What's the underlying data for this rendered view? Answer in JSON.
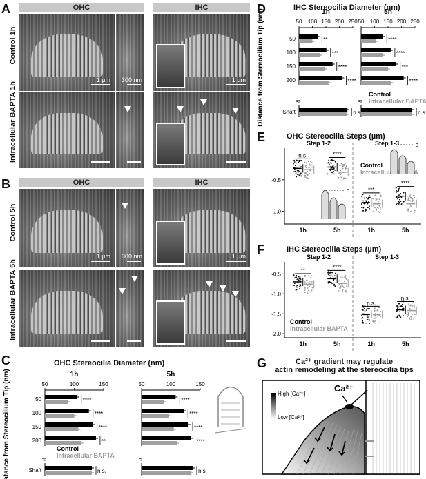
{
  "panels": {
    "A": {
      "letter": "A",
      "col_headers": [
        "OHC",
        "IHC"
      ],
      "row_labels": [
        "Control 1h",
        "Intracellular BAPTA 1h"
      ],
      "scale_1um": "1 µm",
      "scale_300nm": "300 nm"
    },
    "B": {
      "letter": "B",
      "col_headers": [
        "OHC",
        "IHC"
      ],
      "row_labels": [
        "Control 5h",
        "Intracellular BAPTA 5h"
      ],
      "scale_1um": "1 µm",
      "scale_300nm": "300 nm"
    },
    "C": {
      "letter": "C",
      "title": "OHC Stereocilia Diameter (nm)",
      "ylabel": "Distance from Stereocilium Tip (nm)",
      "legend_control": "Control",
      "legend_bapta": "Intracellular BAPTA"
    },
    "D": {
      "letter": "D",
      "title": "IHC Stereocilia Diameter (nm)",
      "ylabel": "Distance from Stereocilium Tip (nm)",
      "legend_control": "Control",
      "legend_bapta": "Intracellular BAPTA"
    },
    "E": {
      "letter": "E",
      "title": "OHC Stereocilia Steps (µm)",
      "step12": "Step 1-2",
      "step13": "Step 1-3",
      "legend_control": "Control",
      "legend_bapta": "Intracellular BAPTA",
      "inset_zero": "0"
    },
    "F": {
      "letter": "F",
      "title": "IHC Stereocilia Steps (µm)",
      "step12": "Step 1-2",
      "step13": "Step 1-3",
      "legend_control": "Control",
      "legend_bapta": "Intracellular BAPTA"
    },
    "G": {
      "letter": "G",
      "title_line1": "Ca²⁺ gradient may regulate",
      "title_line2": "actin remodeling at the stereocilia tips",
      "high": "High [Ca²⁺]",
      "low": "Low [Ca²⁺]",
      "ca": "Ca²⁺"
    }
  },
  "chart_data": [
    {
      "type": "bar",
      "id": "C",
      "orientation": "horizontal",
      "title": "OHC Stereocilia Diameter (nm)",
      "ylabel": "Distance from Stereocilium Tip (nm)",
      "groups": [
        {
          "name": "1h",
          "categories": [
            "50",
            "100",
            "150",
            "200",
            "Shaft"
          ],
          "xlim": [
            50,
            150
          ],
          "xticks": [
            50,
            100,
            150
          ],
          "series": [
            {
              "name": "Control",
              "color": "#000000",
              "values": [
                105,
                125,
                132,
                137,
                130
              ]
            },
            {
              "name": "Intracellular BAPTA",
              "color": "#a0a0a0",
              "values": [
                90,
                100,
                107,
                112,
                130
              ]
            }
          ],
          "significance": [
            "****",
            "****",
            "****",
            "**",
            "n.s."
          ]
        },
        {
          "name": "5h",
          "categories": [
            "50",
            "100",
            "150",
            "200",
            "Shaft"
          ],
          "xlim": [
            50,
            150
          ],
          "xticks": [
            50,
            100,
            150
          ],
          "series": [
            {
              "name": "Control",
              "color": "#000000",
              "values": [
                108,
                122,
                130,
                134,
                137
              ]
            },
            {
              "name": "Intracellular BAPTA",
              "color": "#a0a0a0",
              "values": [
                88,
                97,
                105,
                110,
                135
              ]
            }
          ],
          "significance": [
            "****",
            "****",
            "****",
            "****",
            "n.s."
          ]
        }
      ]
    },
    {
      "type": "bar",
      "id": "D",
      "orientation": "horizontal",
      "title": "IHC Stereocilia Diameter (nm)",
      "ylabel": "Distance from Stereocilium Tip (nm)",
      "groups": [
        {
          "name": "1h",
          "categories": [
            "50",
            "100",
            "150",
            "200",
            "Shaft"
          ],
          "xlim": [
            50,
            250
          ],
          "xticks": [
            50,
            100,
            150,
            200,
            250
          ],
          "series": [
            {
              "name": "Control",
              "color": "#000000",
              "values": [
                120,
                152,
                175,
                210,
                230
              ]
            },
            {
              "name": "Intracellular BAPTA",
              "color": "#a0a0a0",
              "values": [
                100,
                128,
                145,
                160,
                228
              ]
            }
          ],
          "significance": [
            "**",
            "***",
            "****",
            "****",
            "n.s."
          ]
        },
        {
          "name": "5h",
          "categories": [
            "50",
            "100",
            "150",
            "200",
            "Shaft"
          ],
          "xlim": [
            50,
            250
          ],
          "xticks": [
            50,
            100,
            150,
            200,
            250
          ],
          "series": [
            {
              "name": "Control",
              "color": "#000000",
              "values": [
                130,
                160,
                180,
                208,
                240
              ]
            },
            {
              "name": "Intracellular BAPTA",
              "color": "#a0a0a0",
              "values": [
                105,
                130,
                150,
                162,
                238
              ]
            }
          ],
          "significance": [
            "****",
            "****",
            "***",
            "****",
            "n.s."
          ]
        }
      ]
    },
    {
      "type": "scatter",
      "id": "E",
      "title": "OHC Stereocilia Steps (µm)",
      "ylim": [
        -1.2,
        0
      ],
      "yticks": [
        -0.5,
        -1.0
      ],
      "xlabels": [
        "1h",
        "5h"
      ],
      "sections": [
        {
          "name": "Step 1-2",
          "groups": [
            {
              "time": "1h",
              "control_mean": -0.32,
              "bapta_mean": -0.34,
              "significance": "n.s."
            },
            {
              "time": "5h",
              "control_mean": -0.3,
              "bapta_mean": -0.38,
              "significance": "****"
            }
          ]
        },
        {
          "name": "Step 1-3",
          "groups": [
            {
              "time": "1h",
              "control_mean": -0.86,
              "bapta_mean": -0.88,
              "significance": "***"
            },
            {
              "time": "5h",
              "control_mean": -0.76,
              "bapta_mean": -0.88,
              "significance": "****"
            }
          ]
        }
      ]
    },
    {
      "type": "scatter",
      "id": "F",
      "title": "IHC Stereocilia Steps (µm)",
      "ylim": [
        -2.1,
        -0.2
      ],
      "yticks": [
        -0.5,
        -1.0,
        -1.5,
        -2.0
      ],
      "xlabels": [
        "1h",
        "5h"
      ],
      "sections": [
        {
          "name": "Step 1-2",
          "groups": [
            {
              "time": "1h",
              "control_mean": -0.7,
              "bapta_mean": -0.76,
              "significance": "**"
            },
            {
              "time": "5h",
              "control_mean": -0.62,
              "bapta_mean": -0.74,
              "significance": "****"
            }
          ]
        },
        {
          "name": "Step 1-3",
          "groups": [
            {
              "time": "1h",
              "control_mean": -1.52,
              "bapta_mean": -1.52,
              "significance": "n.s."
            },
            {
              "time": "5h",
              "control_mean": -1.4,
              "bapta_mean": -1.42,
              "significance": "n.s."
            }
          ]
        }
      ]
    }
  ]
}
